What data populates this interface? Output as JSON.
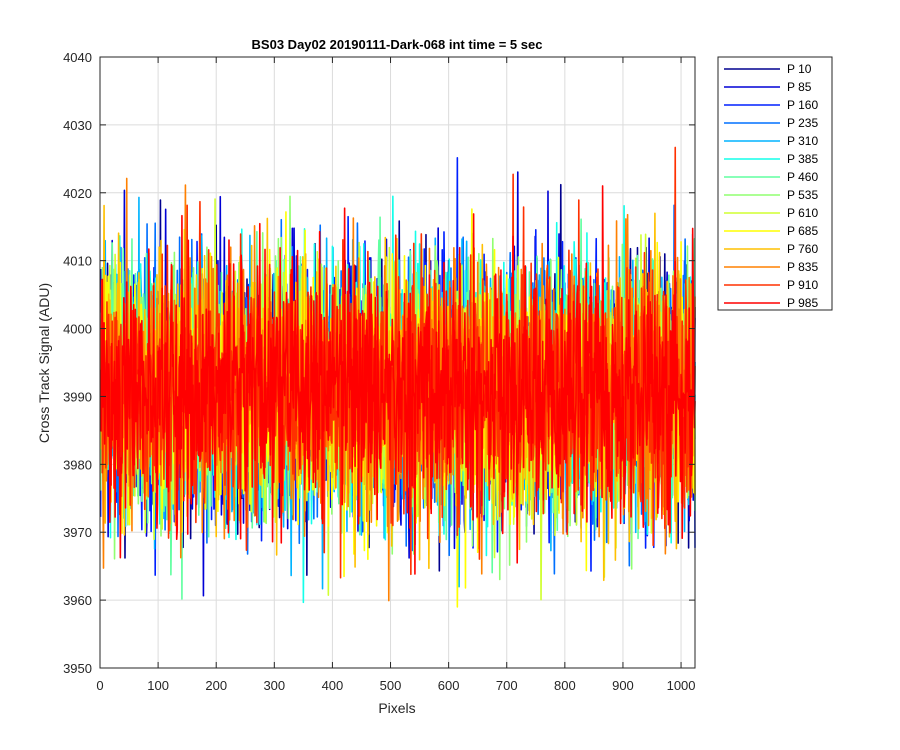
{
  "chart_data": {
    "type": "line",
    "title": "BS03 Day02 20190111-Dark-068 int time = 5 sec",
    "xlabel": "Pixels",
    "ylabel": "Cross Track Signal (ADU)",
    "xlim": [
      0,
      1024
    ],
    "ylim": [
      3950,
      4040
    ],
    "xticks": [
      0,
      100,
      200,
      300,
      400,
      500,
      600,
      700,
      800,
      900,
      1000
    ],
    "yticks": [
      3950,
      3960,
      3970,
      3980,
      3990,
      4000,
      4010,
      4020,
      4030,
      4040
    ],
    "grid": true,
    "legend_position": "outside-top-right",
    "x": {
      "start": 1,
      "end": 1024,
      "step": 1
    },
    "noise": {
      "mean": 3991,
      "std": 9,
      "min": 3959,
      "max": 4033
    },
    "series": [
      {
        "name": "P 10",
        "color": "#00008f"
      },
      {
        "name": "P 85",
        "color": "#0000d6"
      },
      {
        "name": "P 160",
        "color": "#0020ff"
      },
      {
        "name": "P 235",
        "color": "#0070ff"
      },
      {
        "name": "P 310",
        "color": "#00b4ff"
      },
      {
        "name": "P 385",
        "color": "#14ffea"
      },
      {
        "name": "P 460",
        "color": "#60ffa0"
      },
      {
        "name": "P 535",
        "color": "#90ff70"
      },
      {
        "name": "P 610",
        "color": "#d0ff30"
      },
      {
        "name": "P 685",
        "color": "#ffff00"
      },
      {
        "name": "P 760",
        "color": "#ffc000"
      },
      {
        "name": "P 835",
        "color": "#ff8000"
      },
      {
        "name": "P 910",
        "color": "#ff3000"
      },
      {
        "name": "P 985",
        "color": "#ff0000"
      }
    ]
  }
}
